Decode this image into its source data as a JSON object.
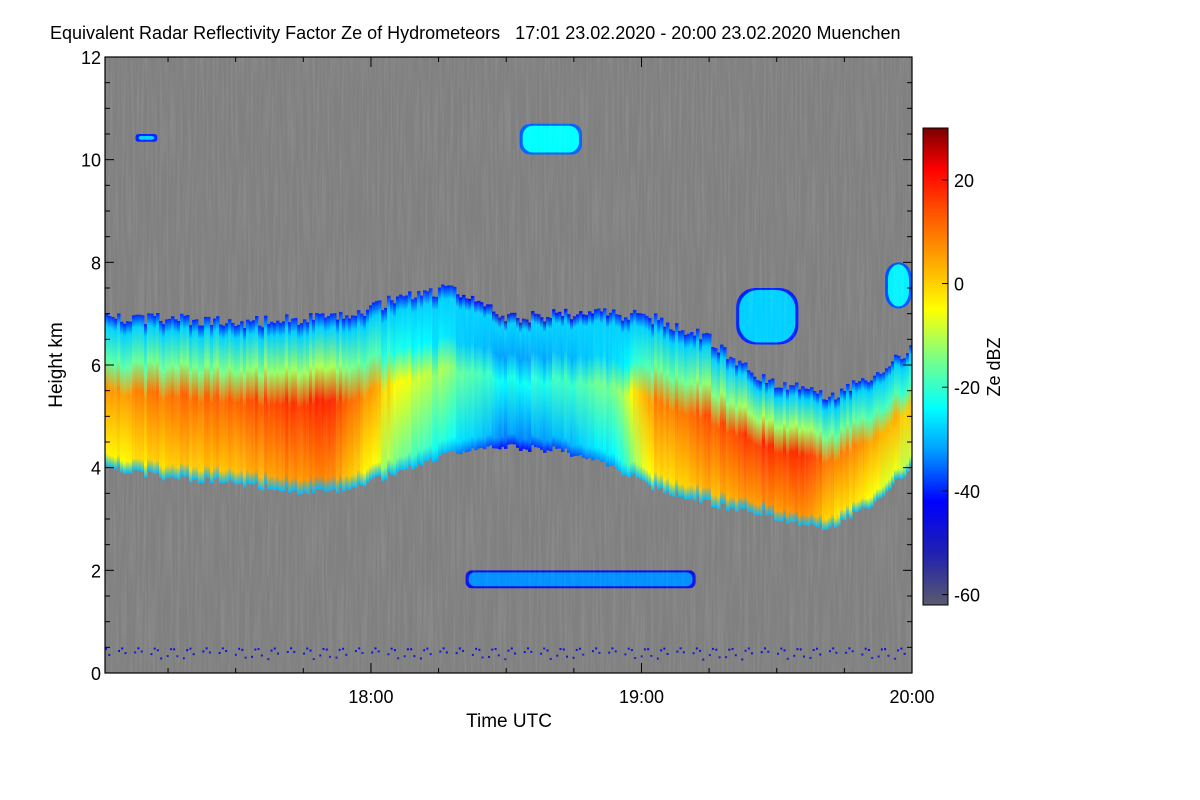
{
  "chart_data": {
    "type": "heatmap",
    "title": "Equivalent Radar Reflectivity Factor Ze of Hydrometeors   17:01 23.02.2020 - 20:00 23.02.2020 Muenchen",
    "xlabel": "Time UTC",
    "ylabel": "Height km",
    "x_range_hours": [
      17.017,
      20.0
    ],
    "ylim": [
      0,
      12
    ],
    "x_ticks": [
      {
        "label": "18:00",
        "value": 18.0
      },
      {
        "label": "19:00",
        "value": 19.0
      },
      {
        "label": "20:00",
        "value": 20.0
      }
    ],
    "y_ticks": [
      0,
      2,
      4,
      6,
      8,
      10,
      12
    ],
    "colorbar": {
      "label": "Ze dBZ",
      "range": [
        -62,
        30
      ],
      "ticks": [
        -60,
        -40,
        -20,
        0,
        20
      ],
      "stops": [
        {
          "value": -62,
          "color": "#5a5a6e"
        },
        {
          "value": -52,
          "color": "#2020b0"
        },
        {
          "value": -42,
          "color": "#0000ff"
        },
        {
          "value": -32,
          "color": "#00a0ff"
        },
        {
          "value": -24,
          "color": "#00ffff"
        },
        {
          "value": -14,
          "color": "#80ff80"
        },
        {
          "value": -5,
          "color": "#ffff00"
        },
        {
          "value": 4,
          "color": "#ffaa00"
        },
        {
          "value": 14,
          "color": "#ff5000"
        },
        {
          "value": 22,
          "color": "#ff0000"
        },
        {
          "value": 30,
          "color": "#7a0000"
        }
      ]
    },
    "background_color": "#808080",
    "main_layer": {
      "times": [
        17.017,
        17.25,
        17.5,
        17.7,
        17.85,
        17.95,
        18.1,
        18.3,
        18.5,
        18.7,
        18.9,
        19.05,
        19.25,
        19.45,
        19.6,
        19.7,
        19.85,
        20.0
      ],
      "top_km": [
        6.9,
        6.9,
        6.8,
        6.9,
        6.9,
        7.0,
        7.3,
        7.5,
        6.9,
        7.0,
        7.0,
        6.9,
        6.5,
        5.7,
        5.6,
        5.4,
        5.8,
        6.3
      ],
      "base_km": [
        4.0,
        3.8,
        3.7,
        3.55,
        3.5,
        3.65,
        3.9,
        4.3,
        4.4,
        4.35,
        4.0,
        3.6,
        3.3,
        3.1,
        2.9,
        2.85,
        3.3,
        4.0
      ],
      "peak_dbz": [
        5,
        10,
        12,
        17,
        17,
        10,
        -5,
        -14,
        -24,
        -20,
        -15,
        8,
        13,
        17,
        18,
        10,
        6,
        0
      ]
    },
    "features": [
      {
        "name": "upper-cloud-10km",
        "time_start": 18.55,
        "time_end": 18.78,
        "base_km": 10.1,
        "top_km": 10.7,
        "dbz": -24
      },
      {
        "name": "small-echo-10_4km",
        "time_start": 17.13,
        "time_end": 17.21,
        "base_km": 10.35,
        "top_km": 10.5,
        "dbz": -28
      },
      {
        "name": "cloud-near-7km",
        "time_start": 19.35,
        "time_end": 19.58,
        "base_km": 6.4,
        "top_km": 7.5,
        "dbz": -28
      },
      {
        "name": "cloud-near-7_5km",
        "time_start": 19.9,
        "time_end": 20.0,
        "base_km": 7.1,
        "top_km": 8.0,
        "dbz": -25
      },
      {
        "name": "low-layer-2km",
        "time_start": 18.35,
        "time_end": 19.2,
        "base_km": 1.65,
        "top_km": 2.0,
        "dbz": -33
      },
      {
        "name": "ground-clutter",
        "time_start": 17.017,
        "time_end": 20.0,
        "base_km": 0.1,
        "top_km": 0.5,
        "dbz": -55
      }
    ]
  }
}
